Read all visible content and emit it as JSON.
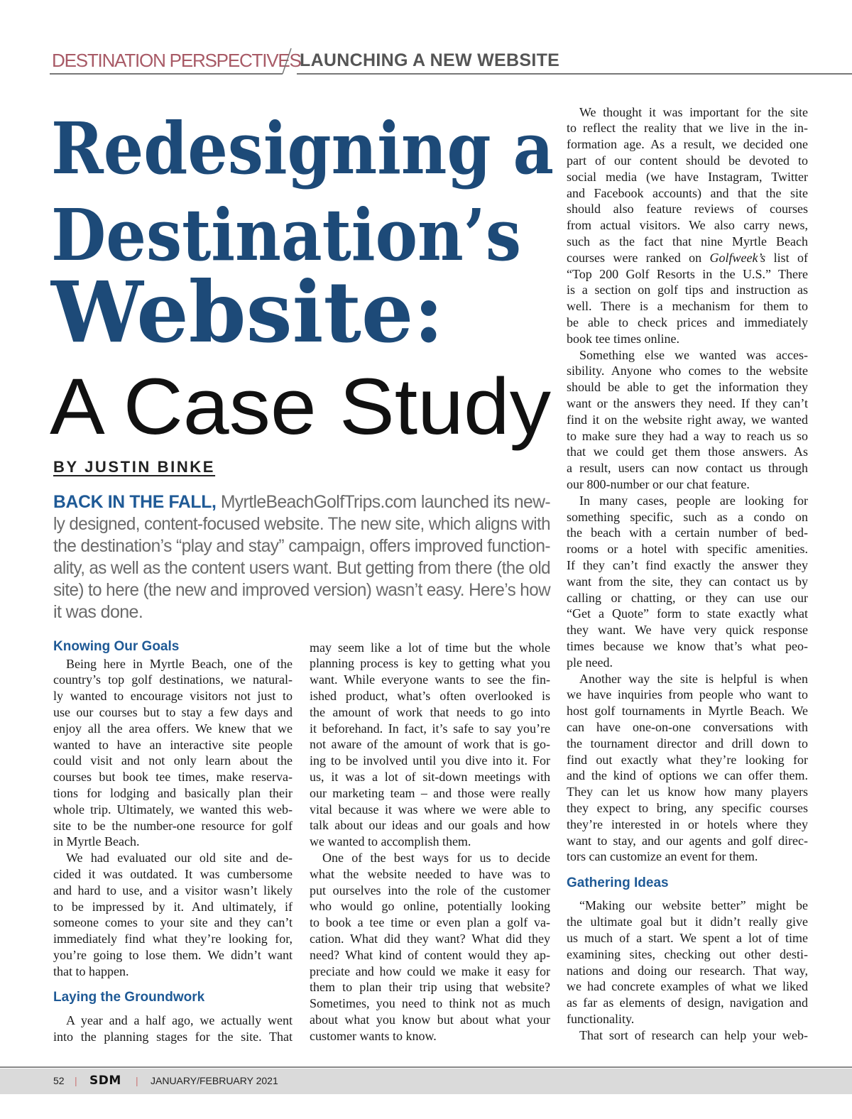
{
  "header": {
    "section": "DESTINATION PERSPECTIVES",
    "topic": "LAUNCHING A NEW WEBSITE"
  },
  "title": {
    "line1": "Redesigning a",
    "line2": "Destination’s",
    "line3": "Website:",
    "line4": "A Case Study"
  },
  "byline": "BY JUSTIN BINKE",
  "lead": {
    "kicker": "BACK IN THE FALL,",
    "lines": [
      " MyrtleBeachGolfTrips.com launched its new-",
      "ly designed, content-focused website. The new site, which aligns with",
      "the destination’s “play and stay” campaign, offers improved function-",
      "ality, as well as the content users want. But getting from there (the old",
      "site) to here (the new and improved version) wasn’t easy. Here’s how",
      "it was done."
    ]
  },
  "columns": [
    {
      "blocks": [
        {
          "type": "heading",
          "text": "Knowing Our Goals"
        },
        {
          "type": "paragraph",
          "indent": true,
          "lines": [
            "Being here in Myrtle Beach, one of the",
            "country’s top golf destinations, we natural-",
            "ly wanted to encourage visitors not just to",
            "use our courses but to stay a few days and",
            "enjoy all the area offers. We knew that we",
            "wanted to have an interactive site people",
            "could visit and not only learn about the",
            "courses but book tee times, make reserva-",
            "tions for lodging and basically plan their",
            "whole trip. Ultimately, we wanted this web-",
            "site to be the number-one resource for golf",
            "in Myrtle Beach."
          ]
        },
        {
          "type": "paragraph",
          "indent": true,
          "lines": [
            "We had evaluated our old site and de-",
            "cided it was outdated. It was cumbersome",
            "and hard to use, and a visitor wasn’t likely",
            "to be impressed by it. And ultimately, if",
            "someone comes to your site and they can’t",
            "immediately find what they’re looking for,",
            "you’re going to lose them. We didn’t want",
            "that to happen."
          ]
        },
        {
          "type": "heading",
          "text": "Laying the Groundwork"
        },
        {
          "type": "paragraph",
          "indent": true,
          "continues": true,
          "lines": [
            "A year and a half ago, we actually went",
            "into the planning stages for the site. That"
          ]
        }
      ]
    },
    {
      "blocks": [
        {
          "type": "paragraph",
          "indent": false,
          "lines": [
            "may seem like a lot of time but the whole",
            "planning process is key to getting what you",
            "want. While everyone wants to see the fin-",
            "ished product, what’s often overlooked is",
            "the amount of work that needs to go into",
            "it beforehand. In fact, it’s safe to say you’re",
            "not aware of the amount of work that is go-",
            "ing to be involved until you dive into it. For",
            "us, it was a lot of sit-down meetings with",
            "our marketing team – and those were really",
            "vital because it was where we were able to",
            "talk about our ideas and our goals and how",
            "we wanted to accomplish them."
          ]
        },
        {
          "type": "paragraph",
          "indent": true,
          "lines": [
            "One of the best ways for us to decide",
            "what the website needed to have was to",
            "put ourselves into the role of the customer",
            "who would go online, potentially looking",
            "to book a tee time or even plan a golf va-",
            "cation. What did they want? What did they",
            "need? What kind of content would they ap-",
            "preciate and how could we make it easy for",
            "them to plan their trip using that website?",
            "Sometimes, you need to think not as much",
            "about what you know but about what your",
            "customer wants to know."
          ]
        }
      ]
    },
    {
      "blocks": [
        {
          "type": "paragraph",
          "indent": true,
          "lines": [
            "We thought it was important for the site",
            "to reflect the reality that we live in the in-",
            "formation age. As a result, we decided one",
            "part of our content should be devoted to",
            "social media (we have Instagram, Twitter",
            "and Facebook accounts) and that the site",
            "should also feature reviews of courses",
            "from actual visitors. We also carry news,",
            "such as the fact that nine Myrtle Beach",
            [
              {
                "text": "courses were ranked on ",
                "italic": false
              },
              {
                "text": "Golfweek’s",
                "italic": true
              },
              {
                "text": " list of",
                "italic": false
              }
            ],
            "“Top 200 Golf Resorts in the U.S.” There",
            "is a section on golf tips and instruction as",
            "well. There is a mechanism for them to",
            "be able to check prices and immediately",
            "book tee times online."
          ]
        },
        {
          "type": "paragraph",
          "indent": true,
          "lines": [
            "Something else we wanted was acces-",
            "sibility. Anyone who comes to the website",
            "should be able to get the information they",
            "want or the answers they need. If they can’t",
            "find it on the website right away, we wanted",
            "to make sure they had a way to reach us so",
            "that we could get them those answers. As",
            "a result, users can now contact us through",
            "our 800-number or our chat feature."
          ]
        },
        {
          "type": "paragraph",
          "indent": true,
          "lines": [
            "In many cases, people are looking for",
            "something specific, such as a condo on",
            "the beach with a certain number of bed-",
            "rooms or a hotel with specific amenities.",
            "If they can’t find exactly the answer they",
            "want from the site, they can contact us by",
            "calling or chatting, or they can use our",
            "“Get a Quote” form to state exactly what",
            "they want. We have very quick response",
            "times because we know that’s what peo-",
            "ple need."
          ]
        },
        {
          "type": "paragraph",
          "indent": true,
          "lines": [
            "Another way the site is helpful is when",
            "we have inquiries from people who want to",
            "host golf tournaments in Myrtle Beach. We",
            "can have one-on-one conversations with",
            "the tournament director and drill down to",
            "find out exactly what they’re looking for",
            "and the kind of options we can offer them.",
            "They can let us know how many players",
            "they expect to bring, any specific courses",
            "they’re interested in or hotels where they",
            "want to stay, and our agents and golf direc-",
            "tors can customize an event for them."
          ]
        },
        {
          "type": "heading",
          "text": "Gathering Ideas"
        },
        {
          "type": "paragraph",
          "indent": true,
          "lines": [
            "“Making our website better” might be",
            "the ultimate goal but it didn’t really give",
            "us much of a start. We spent a lot of time",
            "examining sites, checking out other desti-",
            "nations and doing our research. That way,",
            "we had concrete examples of what we liked",
            "as far as elements of design, navigation and",
            "functionality."
          ]
        },
        {
          "type": "paragraph",
          "indent": true,
          "continues": true,
          "lines": [
            "That sort of research can help your web-"
          ]
        }
      ]
    }
  ],
  "footer": {
    "page": "52",
    "separator": "|",
    "magazine": "SDM",
    "issue": "JANUARY/FEBRUARY 2021"
  },
  "colors": {
    "title_blue": "#1d4a78",
    "heading_blue": "#1f5a96",
    "section_red": "#a85a66"
  }
}
